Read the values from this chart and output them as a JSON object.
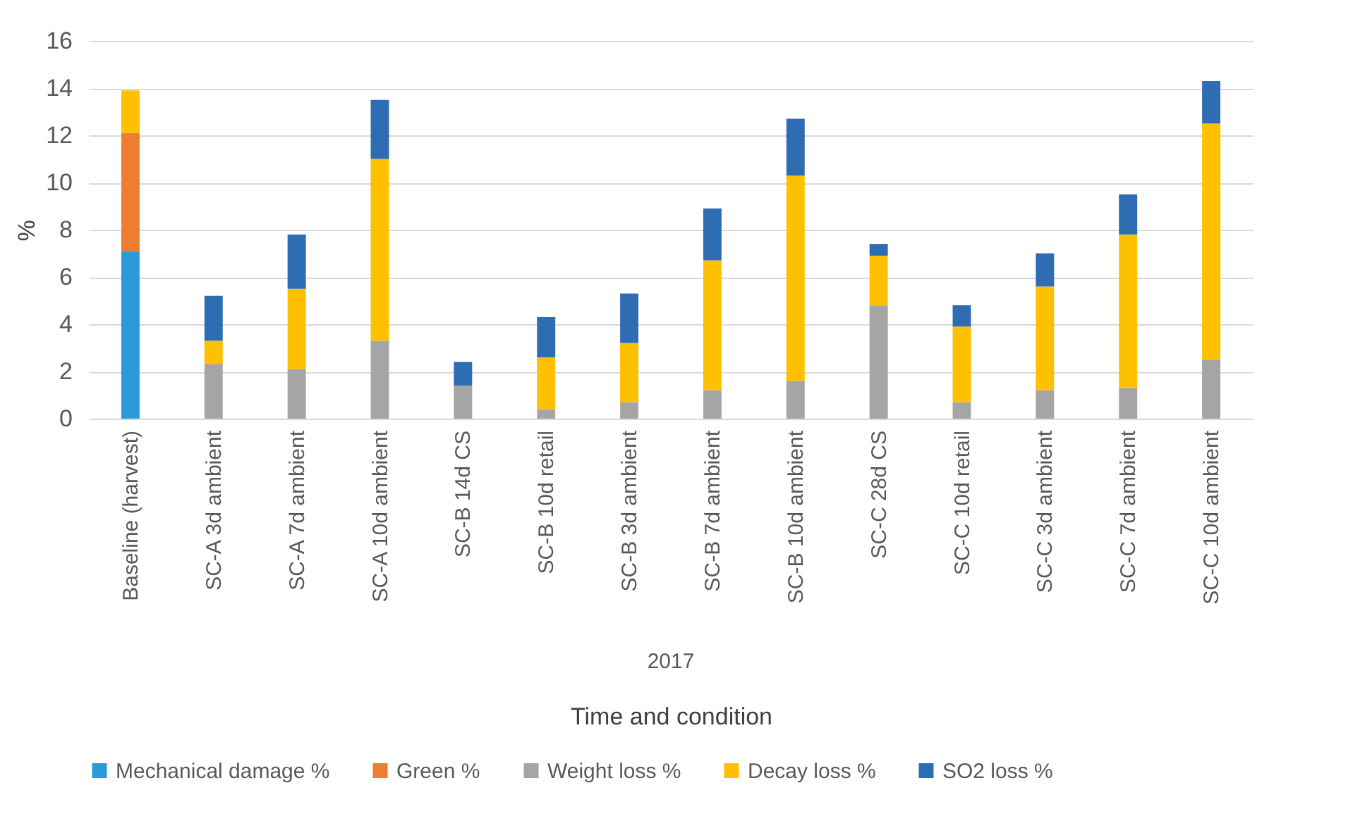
{
  "chart_data": {
    "type": "bar",
    "stacked": true,
    "xlabel": "Time and condition",
    "ylabel": "%",
    "annotations": [
      "2017"
    ],
    "categories": [
      "Baseline (harvest)",
      "SC-A 3d ambient",
      "SC-A 7d ambient",
      "SC-A 10d ambient",
      "SC-B 14d CS",
      "SC-B 10d retail",
      "SC-B 3d ambient",
      "SC-B 7d ambient",
      "SC-B 10d ambient",
      "SC-C 28d CS",
      "SC-C 10d retail",
      "SC-C 3d ambient",
      "SC-C 7d ambient",
      "SC-C 10d ambient"
    ],
    "series": [
      {
        "name": "Mechanical damage %",
        "color": "#2a9ad8",
        "values": [
          7.1,
          0,
          0,
          0,
          0,
          0,
          0,
          0,
          0,
          0,
          0,
          0,
          0,
          0
        ]
      },
      {
        "name": "Green %",
        "color": "#ed7d31",
        "values": [
          5.0,
          0,
          0,
          0,
          0,
          0,
          0,
          0,
          0,
          0,
          0,
          0,
          0,
          0
        ]
      },
      {
        "name": "Weight loss %",
        "color": "#a5a5a5",
        "values": [
          0,
          2.3,
          2.1,
          3.3,
          1.4,
          0.4,
          0.7,
          1.2,
          1.6,
          4.8,
          0.7,
          1.2,
          1.3,
          2.5
        ]
      },
      {
        "name": "Decay loss %",
        "color": "#ffc000",
        "values": [
          1.8,
          1.0,
          3.4,
          7.7,
          0,
          2.2,
          2.5,
          5.5,
          8.7,
          2.1,
          3.2,
          4.4,
          6.5,
          10.0
        ]
      },
      {
        "name": "SO2 loss %",
        "color": "#2e6db4",
        "values": [
          0,
          1.9,
          2.3,
          2.5,
          1.0,
          1.7,
          2.1,
          2.2,
          2.4,
          0.5,
          0.9,
          1.4,
          1.7,
          1.8
        ]
      }
    ],
    "ylim": [
      0,
      16
    ],
    "yticks": [
      0,
      2,
      4,
      6,
      8,
      10,
      12,
      14,
      16
    ],
    "grid": "y",
    "legend": "bottom"
  }
}
